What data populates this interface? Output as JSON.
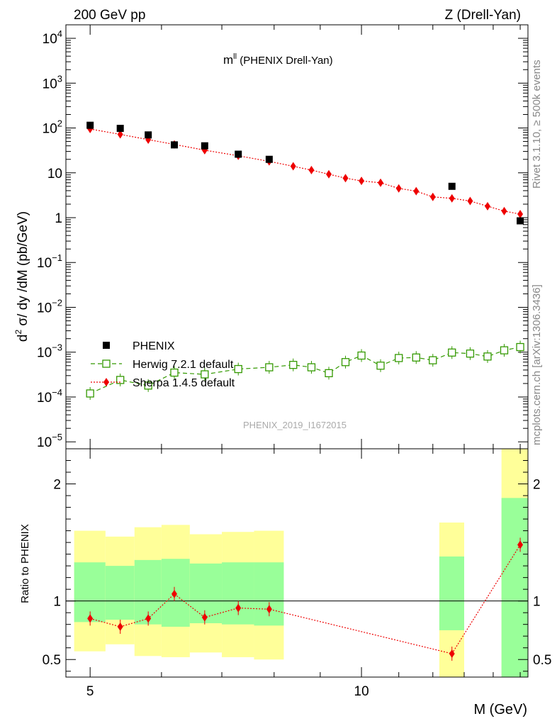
{
  "header": {
    "left": "200 GeV pp",
    "right": "Z (Drell-Yan)"
  },
  "side": {
    "rivet": "Rivet 3.1.10, ≥ 500k events",
    "mcplots": "mcplots.cern.ch [arXiv:1306.3436]"
  },
  "chart_data": [
    {
      "type": "scatter",
      "title": "m^ll (PHENIX Drell-Yan)",
      "title_main": "m",
      "title_sup": "ll",
      "title_rest": " (PHENIX Drell-Yan)",
      "watermark": "PHENIX_2019_I1672015",
      "ylabel": "d² σ/ dy /dM (pb/GeV)",
      "ylabel_parts": [
        "d",
        "2",
        " σ/ dy /dM (pb/GeV)"
      ],
      "yscale": "log",
      "ylim": [
        7e-06,
        20000
      ],
      "xscale": "log",
      "xlim": [
        4.7,
        15.3
      ],
      "yticks": [
        {
          "value": 1e-05,
          "base": "10",
          "exp": "−5"
        },
        {
          "value": 0.0001,
          "base": "10",
          "exp": "−4"
        },
        {
          "value": 0.001,
          "base": "10",
          "exp": "−3"
        },
        {
          "value": 0.01,
          "base": "10",
          "exp": "−2"
        },
        {
          "value": 0.1,
          "base": "10",
          "exp": "−1"
        },
        {
          "value": 1,
          "base": "1",
          "exp": ""
        },
        {
          "value": 10,
          "base": "10",
          "exp": ""
        },
        {
          "value": 100,
          "base": "10",
          "exp": "2"
        },
        {
          "value": 1000,
          "base": "10",
          "exp": "3"
        },
        {
          "value": 10000,
          "base": "10",
          "exp": "4"
        }
      ],
      "legend": [
        "PHENIX",
        "Herwig 7.2.1 default",
        "Sherpa 1.4.5 default"
      ],
      "legend_position": "bottom-left",
      "series": [
        {
          "name": "PHENIX",
          "marker": "filled-square",
          "color": "#000000",
          "x": [
            5.0,
            5.4,
            5.8,
            6.2,
            6.7,
            7.3,
            7.9,
            12.6,
            15.0
          ],
          "y": [
            115,
            98,
            70,
            42,
            40,
            26,
            20,
            5.0,
            0.85
          ]
        },
        {
          "name": "Herwig 7.2.1 default",
          "marker": "open-square",
          "color": "#339900",
          "x": [
            5.0,
            5.4,
            5.8,
            6.2,
            6.7,
            7.3,
            7.9,
            8.4,
            8.8,
            9.2,
            9.6,
            10.0,
            10.5,
            11.0,
            11.5,
            12.0,
            12.6,
            13.2,
            13.8,
            14.4,
            15.0
          ],
          "y": [
            0.00012,
            0.00024,
            0.00018,
            0.00035,
            0.00032,
            0.00042,
            0.00046,
            0.00052,
            0.00046,
            0.00034,
            0.0006,
            0.00084,
            0.0005,
            0.00074,
            0.00076,
            0.00066,
            0.00098,
            0.00093,
            0.0008,
            0.0011,
            0.0013
          ]
        },
        {
          "name": "Sherpa 1.4.5 default",
          "marker": "diamond",
          "color": "#ee0000",
          "x": [
            5.0,
            5.4,
            5.8,
            6.2,
            6.7,
            7.3,
            7.9,
            8.4,
            8.8,
            9.2,
            9.6,
            10.0,
            10.5,
            11.0,
            11.5,
            12.0,
            12.6,
            13.2,
            13.8,
            14.4,
            15.0
          ],
          "y": [
            95,
            72,
            55,
            43,
            32,
            24,
            18,
            14,
            11.5,
            9.3,
            7.6,
            6.6,
            6.0,
            4.5,
            3.9,
            2.9,
            2.7,
            2.35,
            1.8,
            1.4,
            1.2
          ]
        }
      ]
    },
    {
      "type": "scatter",
      "ylabel": "Ratio to PHENIX",
      "xlabel": "M (GeV)",
      "ylim": [
        0.35,
        2.3
      ],
      "xlim": [
        4.7,
        15.3
      ],
      "yticks": [
        {
          "value": 0.5,
          "label": "0.5"
        },
        {
          "value": 1,
          "label": "1"
        },
        {
          "value": 2,
          "label": "2"
        }
      ],
      "xticks": [
        {
          "value": 5,
          "label": "5"
        },
        {
          "value": 10,
          "label": "10"
        }
      ],
      "bands": [
        {
          "x0": 4.8,
          "x1": 5.2,
          "yellow": [
            0.57,
            1.6
          ],
          "green": [
            0.82,
            1.33
          ]
        },
        {
          "x0": 5.2,
          "x1": 5.6,
          "yellow": [
            0.63,
            1.55
          ],
          "green": [
            0.84,
            1.3
          ]
        },
        {
          "x0": 5.6,
          "x1": 6.0,
          "yellow": [
            0.53,
            1.63
          ],
          "green": [
            0.8,
            1.35
          ]
        },
        {
          "x0": 6.0,
          "x1": 6.45,
          "yellow": [
            0.52,
            1.65
          ],
          "green": [
            0.78,
            1.36
          ]
        },
        {
          "x0": 6.45,
          "x1": 7.0,
          "yellow": [
            0.56,
            1.57
          ],
          "green": [
            0.81,
            1.32
          ]
        },
        {
          "x0": 7.0,
          "x1": 7.6,
          "yellow": [
            0.52,
            1.59
          ],
          "green": [
            0.8,
            1.33
          ]
        },
        {
          "x0": 7.6,
          "x1": 8.2,
          "yellow": [
            0.5,
            1.6
          ],
          "green": [
            0.79,
            1.33
          ]
        },
        {
          "x0": 12.2,
          "x1": 13.0,
          "yellow": [
            0.35,
            1.67
          ],
          "green": [
            0.75,
            1.38
          ]
        },
        {
          "x0": 14.3,
          "x1": 15.3,
          "yellow": [
            0.35,
            2.3
          ],
          "green": [
            0.35,
            1.88
          ]
        }
      ],
      "series": [
        {
          "name": "Sherpa 1.4.5 default",
          "marker": "diamond",
          "color": "#ee0000",
          "x": [
            5.0,
            5.4,
            5.8,
            6.2,
            6.7,
            7.3,
            7.9,
            12.6,
            15.0
          ],
          "y": [
            0.85,
            0.78,
            0.85,
            1.06,
            0.86,
            0.94,
            0.93,
            0.55,
            1.48
          ]
        }
      ]
    }
  ]
}
